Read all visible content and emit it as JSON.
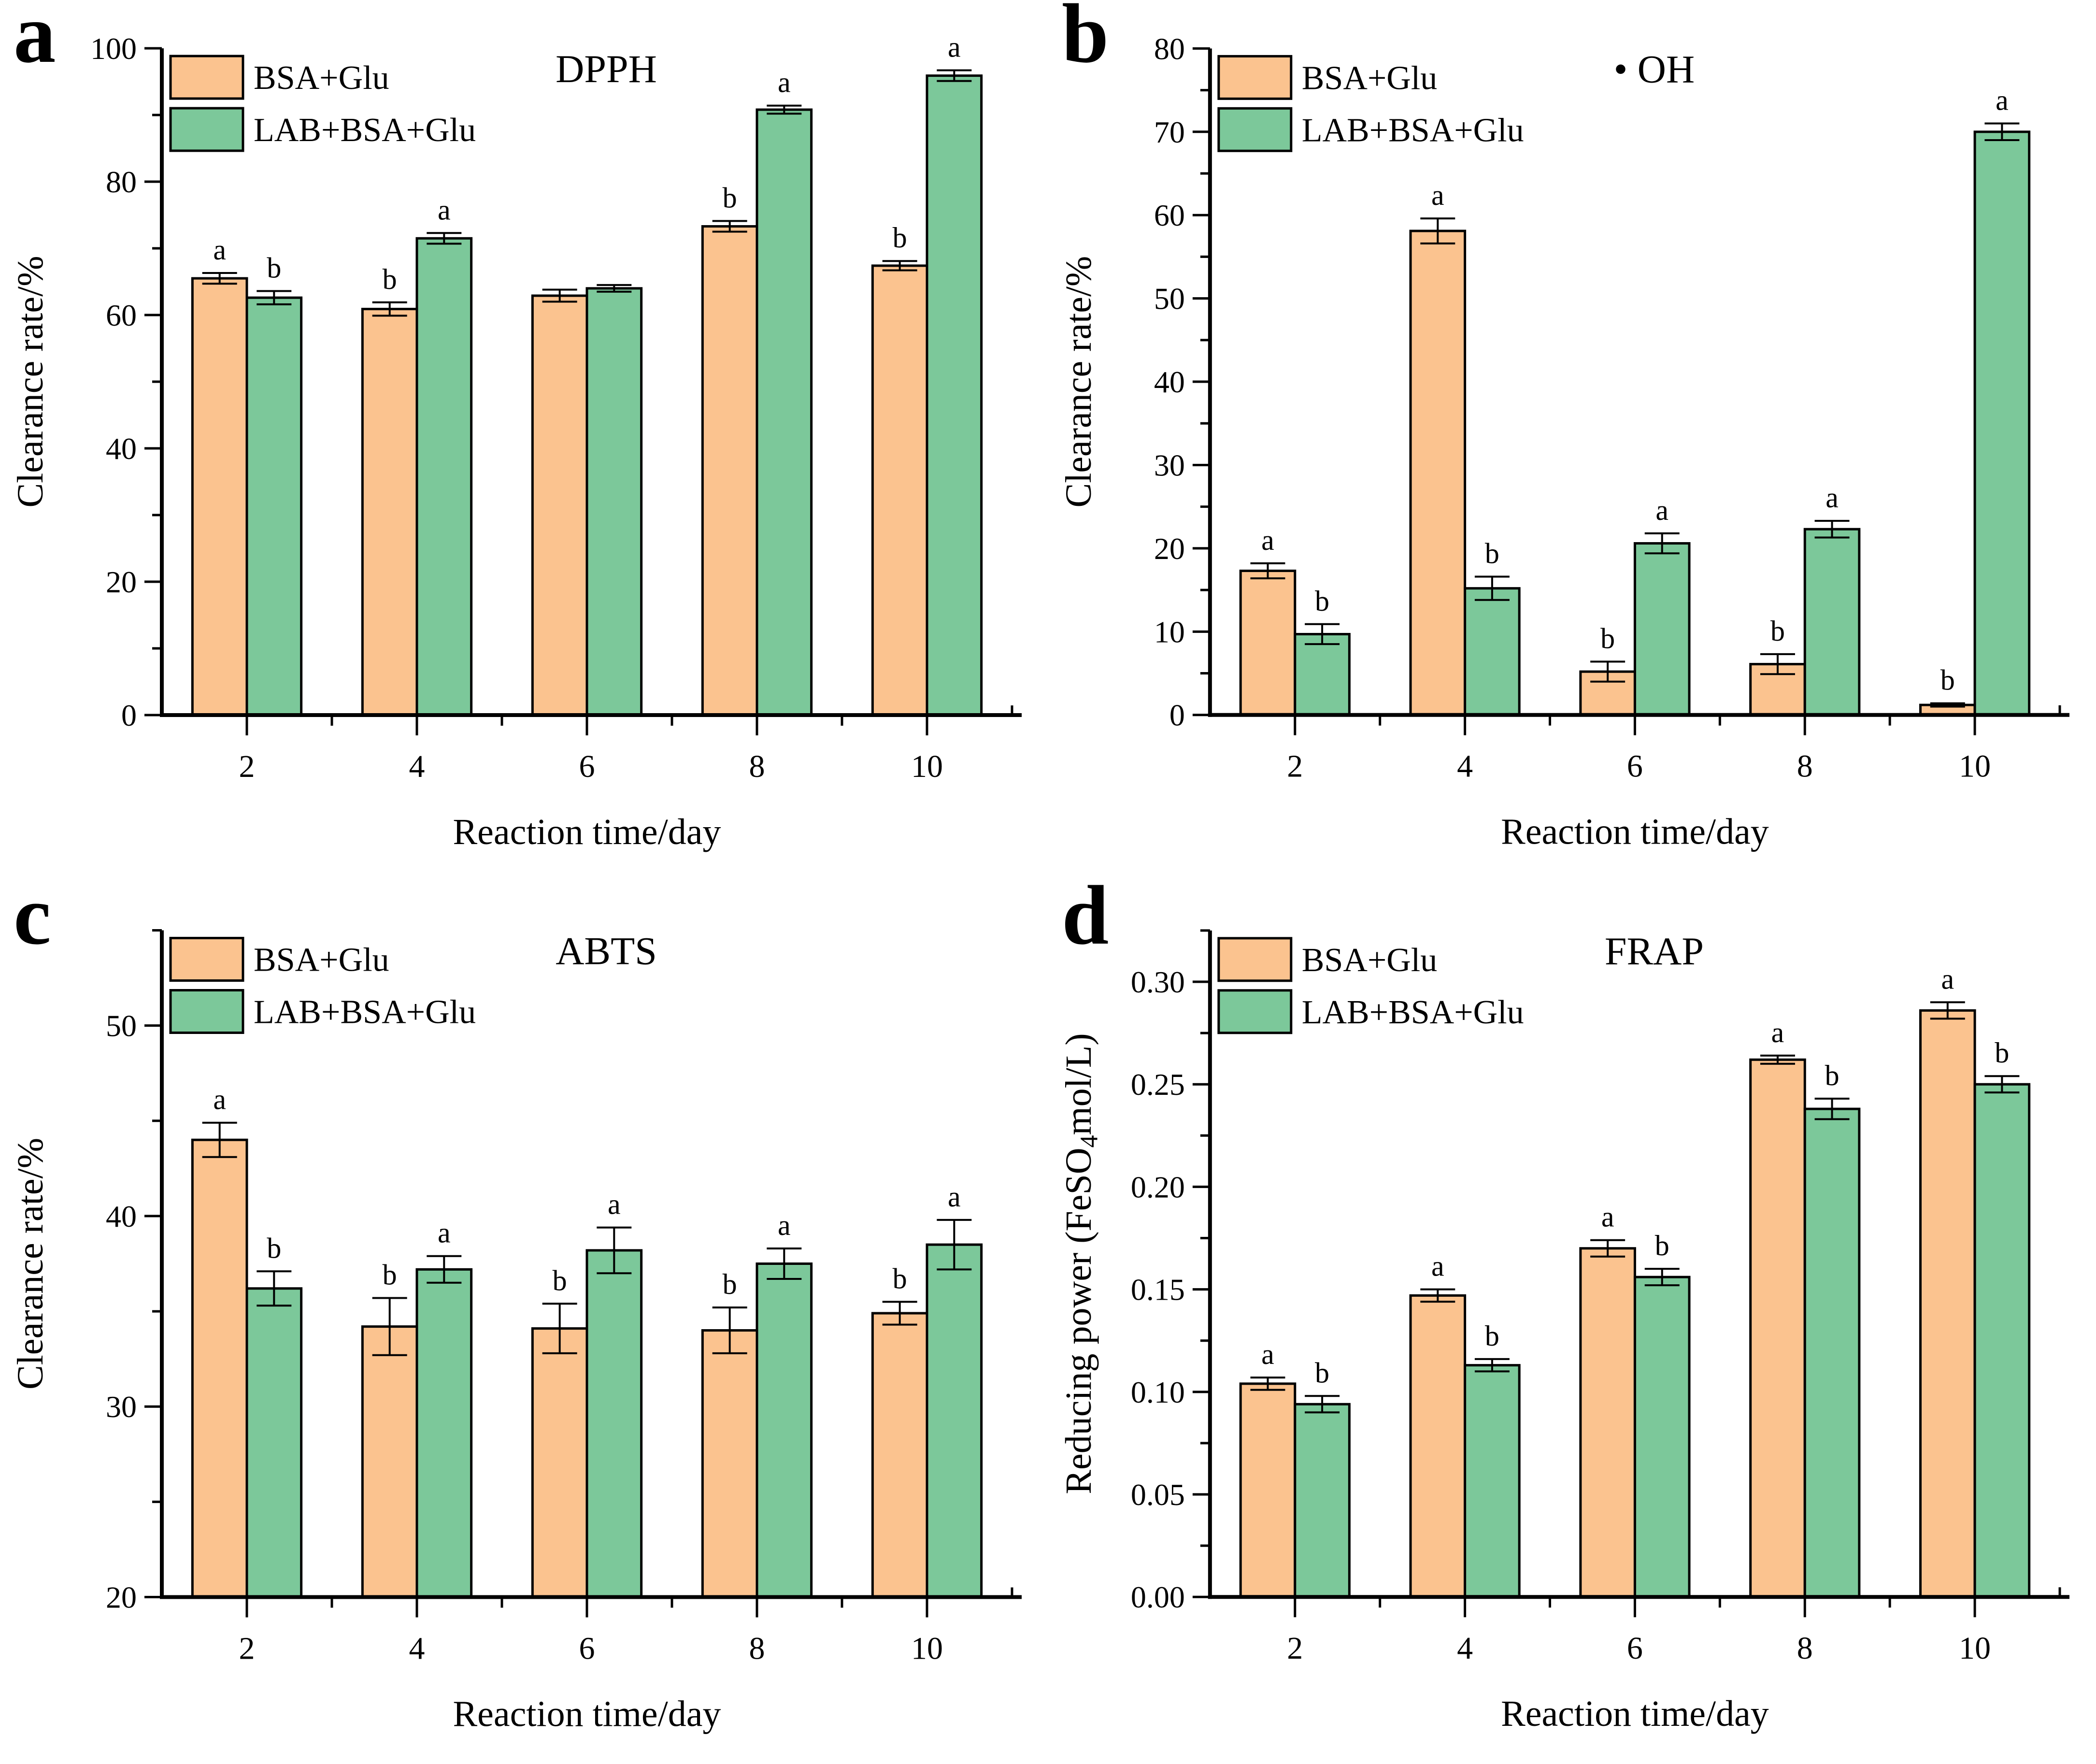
{
  "figure": {
    "background": "#ffffff",
    "bar_edge_color": "#000000",
    "axis_color": "#000000"
  },
  "chart_data": [
    {
      "type": "bar",
      "panel_letter": "a",
      "title": "DPPH",
      "xlabel": "Reaction time/day",
      "ylabel": "Clearance rate/%",
      "ylim": [
        0,
        100
      ],
      "ytick_step": 20,
      "ydecimals": 0,
      "grid": false,
      "legend_position": "top-left",
      "categories": [
        "2",
        "4",
        "6",
        "8",
        "10"
      ],
      "series": [
        {
          "name": "BSA+Glu",
          "color": "#FBC38F",
          "values": [
            65.5,
            60.9,
            62.9,
            73.3,
            67.4
          ],
          "errors": [
            0.8,
            1.0,
            0.9,
            0.8,
            0.7
          ],
          "letters": [
            "a",
            "b",
            "",
            "b",
            "b"
          ]
        },
        {
          "name": "LAB+BSA+Glu",
          "color": "#7CC89A",
          "values": [
            62.6,
            71.5,
            64.0,
            90.8,
            95.9
          ],
          "errors": [
            1.0,
            0.8,
            0.5,
            0.6,
            0.8
          ],
          "letters": [
            "b",
            "a",
            "",
            "a",
            "a"
          ]
        }
      ]
    },
    {
      "type": "bar",
      "panel_letter": "b",
      "title": "• OH",
      "xlabel": "Reaction time/day",
      "ylabel": "Clearance rate/%",
      "ylim": [
        0,
        80
      ],
      "ytick_step": 10,
      "ydecimals": 0,
      "grid": false,
      "legend_position": "top-left",
      "categories": [
        "2",
        "4",
        "6",
        "8",
        "10"
      ],
      "series": [
        {
          "name": "BSA+Glu",
          "color": "#FBC38F",
          "values": [
            17.3,
            58.1,
            5.2,
            6.1,
            1.2
          ],
          "errors": [
            0.9,
            1.5,
            1.2,
            1.2,
            0.2
          ],
          "letters": [
            "a",
            "a",
            "b",
            "b",
            "b"
          ]
        },
        {
          "name": "LAB+BSA+Glu",
          "color": "#7CC89A",
          "values": [
            9.7,
            15.2,
            20.6,
            22.3,
            70.0
          ],
          "errors": [
            1.2,
            1.4,
            1.2,
            1.0,
            1.0
          ],
          "letters": [
            "b",
            "b",
            "a",
            "a",
            "a"
          ]
        }
      ]
    },
    {
      "type": "bar",
      "panel_letter": "c",
      "title": "ABTS",
      "xlabel": "Reaction time/day",
      "ylabel": "Clearance rate/%",
      "ylim": [
        20,
        55
      ],
      "ytick_step": 10,
      "ytick_max_label": 50,
      "ydecimals": 0,
      "grid": false,
      "legend_position": "top-left",
      "categories": [
        "2",
        "4",
        "6",
        "8",
        "10"
      ],
      "series": [
        {
          "name": "BSA+Glu",
          "color": "#FBC38F",
          "values": [
            44.0,
            34.2,
            34.1,
            34.0,
            34.9
          ],
          "errors": [
            0.9,
            1.5,
            1.3,
            1.2,
            0.6
          ],
          "letters": [
            "a",
            "b",
            "b",
            "b",
            "b"
          ]
        },
        {
          "name": "LAB+BSA+Glu",
          "color": "#7CC89A",
          "values": [
            36.2,
            37.2,
            38.2,
            37.5,
            38.5
          ],
          "errors": [
            0.9,
            0.7,
            1.2,
            0.8,
            1.3
          ],
          "letters": [
            "b",
            "a",
            "a",
            "a",
            "a"
          ]
        }
      ]
    },
    {
      "type": "bar",
      "panel_letter": "d",
      "title": "FRAP",
      "xlabel": "Reaction time/day",
      "ylabel": "Reducing power (FeSO₄mol/L)",
      "ylim": [
        0,
        0.325
      ],
      "ytick_step": 0.05,
      "ytick_max_label": 0.3,
      "ydecimals": 2,
      "grid": false,
      "legend_position": "top-left",
      "categories": [
        "2",
        "4",
        "6",
        "8",
        "10"
      ],
      "series": [
        {
          "name": "BSA+Glu",
          "color": "#FBC38F",
          "values": [
            0.104,
            0.147,
            0.17,
            0.262,
            0.286
          ],
          "errors": [
            0.003,
            0.003,
            0.004,
            0.002,
            0.004
          ],
          "letters": [
            "a",
            "a",
            "a",
            "a",
            "a"
          ]
        },
        {
          "name": "LAB+BSA+Glu",
          "color": "#7CC89A",
          "values": [
            0.094,
            0.113,
            0.156,
            0.238,
            0.25
          ],
          "errors": [
            0.004,
            0.003,
            0.004,
            0.005,
            0.004
          ],
          "letters": [
            "b",
            "b",
            "b",
            "b",
            "b"
          ]
        }
      ]
    }
  ]
}
